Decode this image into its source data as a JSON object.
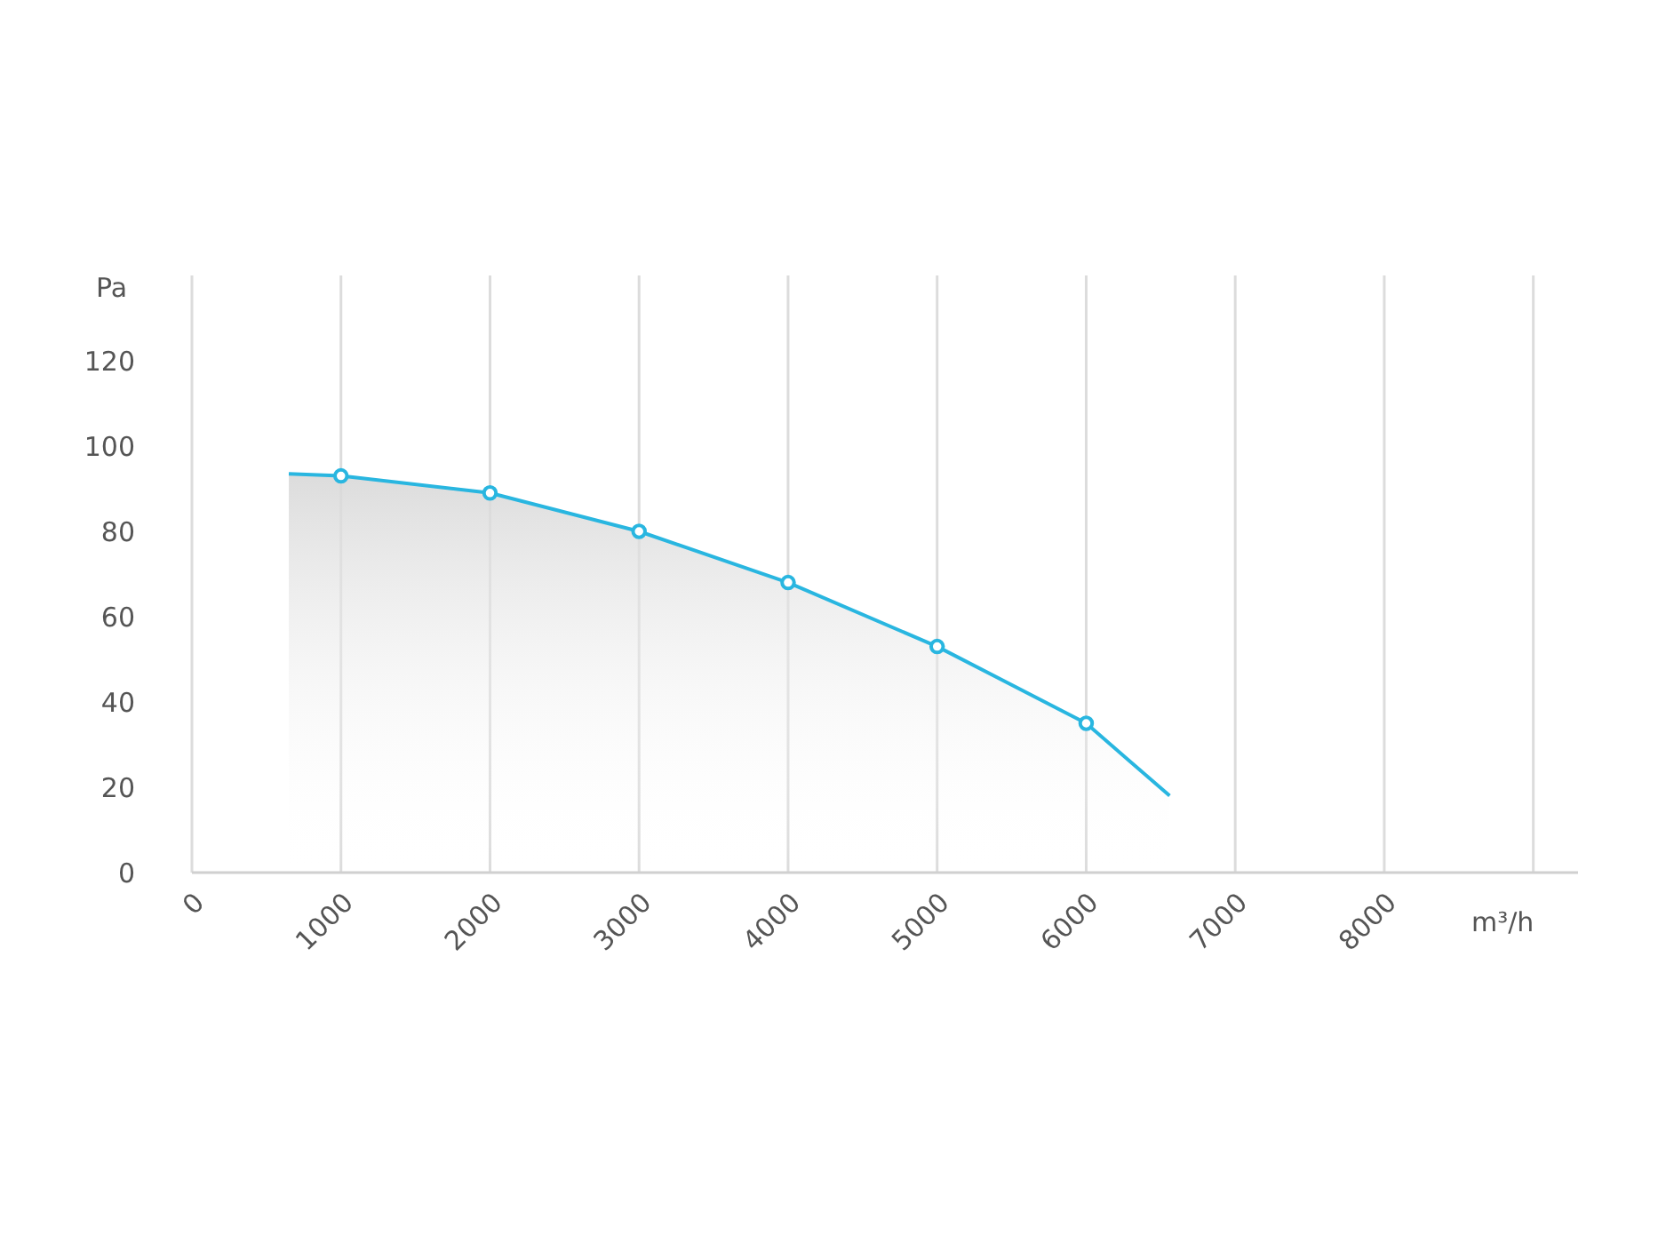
{
  "chart_data": {
    "type": "area",
    "xlabel": "m³/h",
    "ylabel": "Pa",
    "xlim": [
      0,
      9300
    ],
    "ylim": [
      0,
      140
    ],
    "xticks": [
      0,
      1000,
      2000,
      3000,
      4000,
      5000,
      6000,
      7000,
      8000,
      {
        "value": 9000,
        "label": null
      }
    ],
    "yticks": [
      0,
      20,
      40,
      60,
      80,
      100,
      120
    ],
    "grid": "x",
    "series": [
      {
        "type": "area",
        "color": "#29b6e0",
        "x": [
          650,
          1000,
          2000,
          3000,
          4000,
          5000,
          6000,
          6560
        ],
        "values": [
          93.5,
          93,
          89,
          80,
          68,
          53,
          35,
          18
        ]
      },
      {
        "type": "scatter",
        "color": "#29b6e0",
        "marker": "circle",
        "x": [
          1000,
          2000,
          3000,
          4000,
          5000,
          6000
        ],
        "values": [
          93,
          89,
          80,
          68,
          53,
          35
        ]
      }
    ]
  }
}
